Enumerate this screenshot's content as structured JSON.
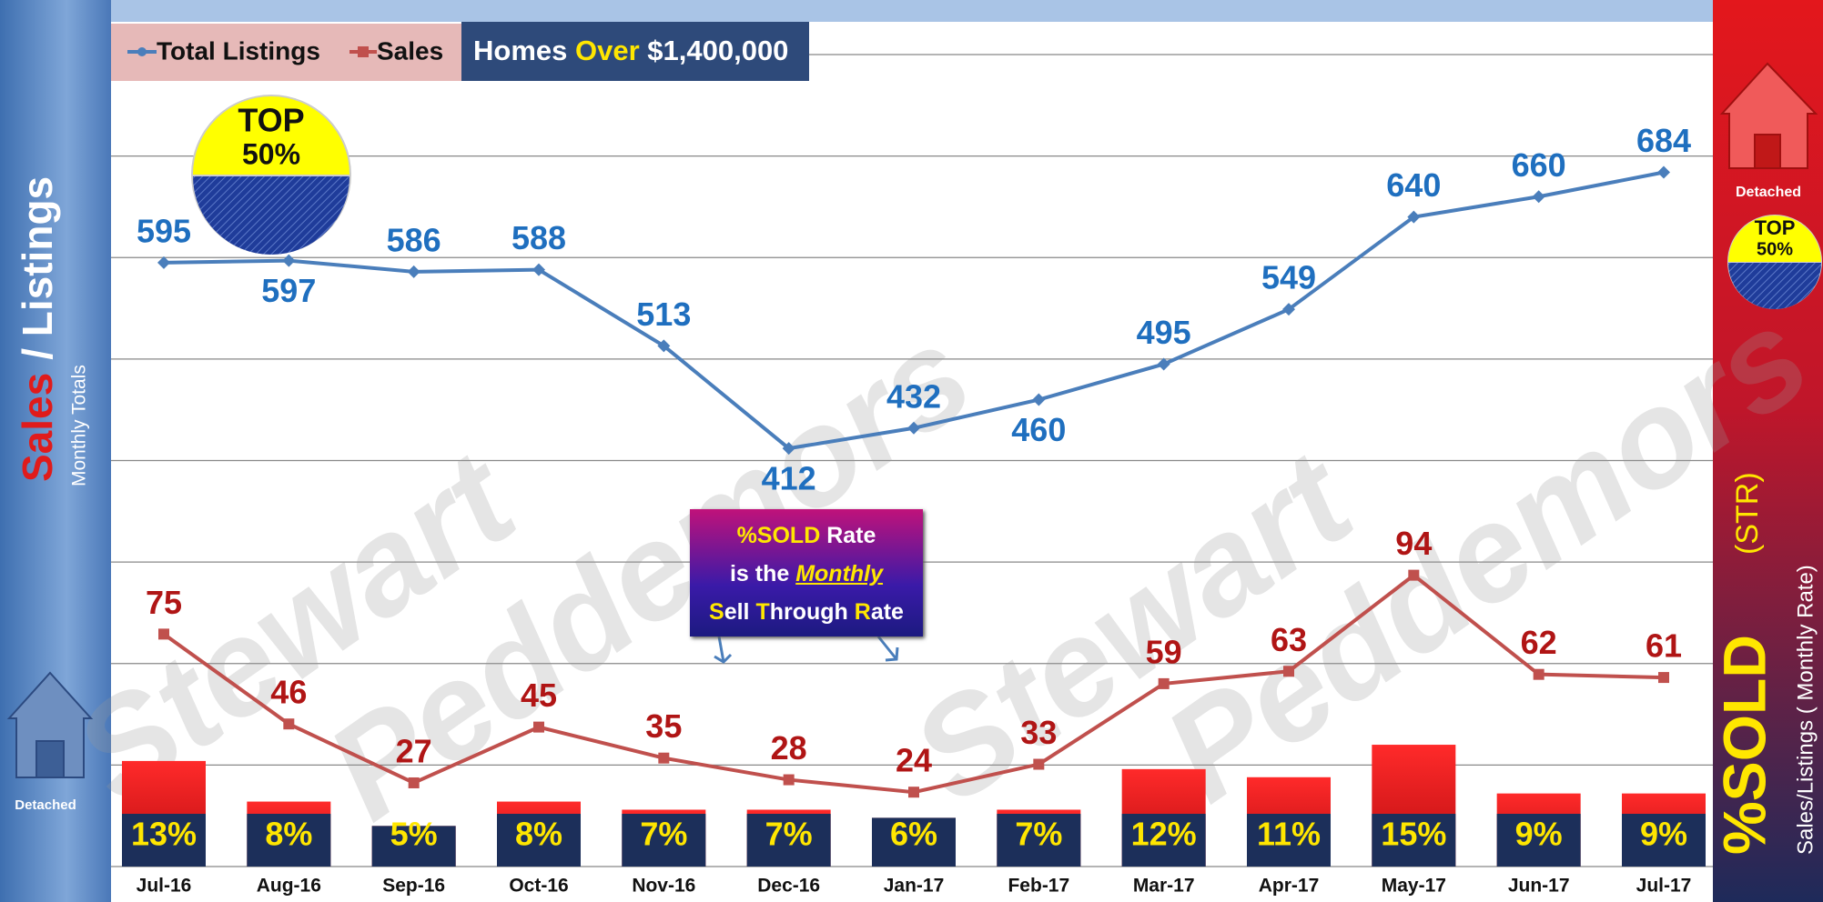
{
  "chart_data": {
    "type": "line",
    "categories": [
      "Jul-16",
      "Aug-16",
      "Sep-16",
      "Oct-16",
      "Nov-16",
      "Dec-16",
      "Jan-17",
      "Feb-17",
      "Mar-17",
      "Apr-17",
      "May-17",
      "Jun-17",
      "Jul-17"
    ],
    "series": [
      {
        "name": "Total Listings",
        "color": "#4a7ebb",
        "values": [
          595,
          597,
          586,
          588,
          513,
          412,
          432,
          460,
          495,
          549,
          640,
          660,
          684
        ]
      },
      {
        "name": "Sales",
        "color": "#c0504d",
        "axis": "y2",
        "values": [
          75,
          46,
          27,
          45,
          35,
          28,
          24,
          33,
          59,
          63,
          94,
          62,
          61
        ]
      },
      {
        "name": "%SOLD",
        "type": "bar",
        "axis": "y3",
        "color": "#e8161b",
        "values": [
          13,
          8,
          5,
          8,
          7,
          7,
          6,
          7,
          12,
          11,
          15,
          9,
          9
        ],
        "value_labels": [
          "13%",
          "8%",
          "5%",
          "8%",
          "7%",
          "7%",
          "6%",
          "7%",
          "12%",
          "11%",
          "15%",
          "9%",
          "9%"
        ]
      }
    ],
    "ylim": [
      0,
      800
    ],
    "yticks": [
      0,
      100,
      200,
      300,
      400,
      500,
      600,
      700,
      800
    ],
    "y2lim": [
      0,
      262
    ],
    "y3lim": [
      0,
      100
    ],
    "grid": true,
    "legend": "top-left"
  },
  "price_box": {
    "prefix": "Homes ",
    "highlight": "Over",
    "suffix": " $1,400,000"
  },
  "badge": {
    "line1": "TOP",
    "line2": "50%"
  },
  "left_panel": {
    "sales": "Sales",
    "listings": "/ Listings",
    "subtitle": "Monthly Totals",
    "house": "Detached"
  },
  "right_panel": {
    "house": "Detached",
    "badge1": "TOP",
    "badge2": "50%",
    "str": "(STR)",
    "subtitle": "Sales/Listings ( Monthly Rate)"
  },
  "callout": {
    "l1a": "%SOLD",
    "l1b": " Rate",
    "l2a": "is the ",
    "l2b": "Monthly",
    "l3": [
      "S",
      "ell ",
      "T",
      "hrough ",
      "R",
      "ate"
    ]
  },
  "watermark": {
    "w1": "Stewart",
    "w2": "Peddemors"
  }
}
